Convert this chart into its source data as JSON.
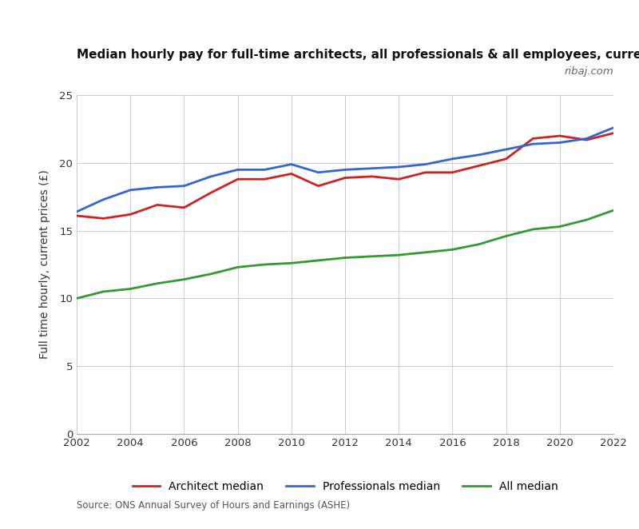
{
  "title": "Median hourly pay for full-time architects, all professionals & all employees, current prices",
  "ylabel": "Full time hourly, current prices (£)",
  "source": "Source: ONS Annual Survey of Hours and Earnings (ASHE)",
  "watermark": "ribaj.com",
  "years": [
    2002,
    2003,
    2004,
    2005,
    2006,
    2007,
    2008,
    2009,
    2010,
    2011,
    2012,
    2013,
    2014,
    2015,
    2016,
    2017,
    2018,
    2019,
    2020,
    2021,
    2022
  ],
  "architect_median": [
    16.1,
    15.9,
    16.2,
    16.9,
    16.7,
    17.8,
    18.8,
    18.8,
    19.2,
    18.3,
    18.9,
    19.0,
    18.8,
    19.3,
    19.3,
    19.8,
    20.3,
    21.8,
    22.0,
    21.7,
    22.2
  ],
  "professionals_median": [
    16.4,
    17.3,
    18.0,
    18.2,
    18.3,
    19.0,
    19.5,
    19.5,
    19.9,
    19.3,
    19.5,
    19.6,
    19.7,
    19.9,
    20.3,
    20.6,
    21.0,
    21.4,
    21.5,
    21.8,
    22.6
  ],
  "all_median": [
    10.0,
    10.5,
    10.7,
    11.1,
    11.4,
    11.8,
    12.3,
    12.5,
    12.6,
    12.8,
    13.0,
    13.1,
    13.2,
    13.4,
    13.6,
    14.0,
    14.6,
    15.1,
    15.3,
    15.8,
    16.5
  ],
  "architect_color": "#cc2222",
  "professionals_color": "#3366cc",
  "all_color": "#339933",
  "background_color": "#ffffff",
  "grid_color": "#cccccc",
  "ylim": [
    0,
    25
  ],
  "yticks": [
    0,
    5,
    10,
    15,
    20,
    25
  ],
  "xtick_years": [
    2002,
    2004,
    2006,
    2008,
    2010,
    2012,
    2014,
    2016,
    2018,
    2020,
    2022
  ],
  "line_width": 2.0,
  "legend_labels": [
    "Architect median",
    "Professionals median",
    "All median"
  ]
}
